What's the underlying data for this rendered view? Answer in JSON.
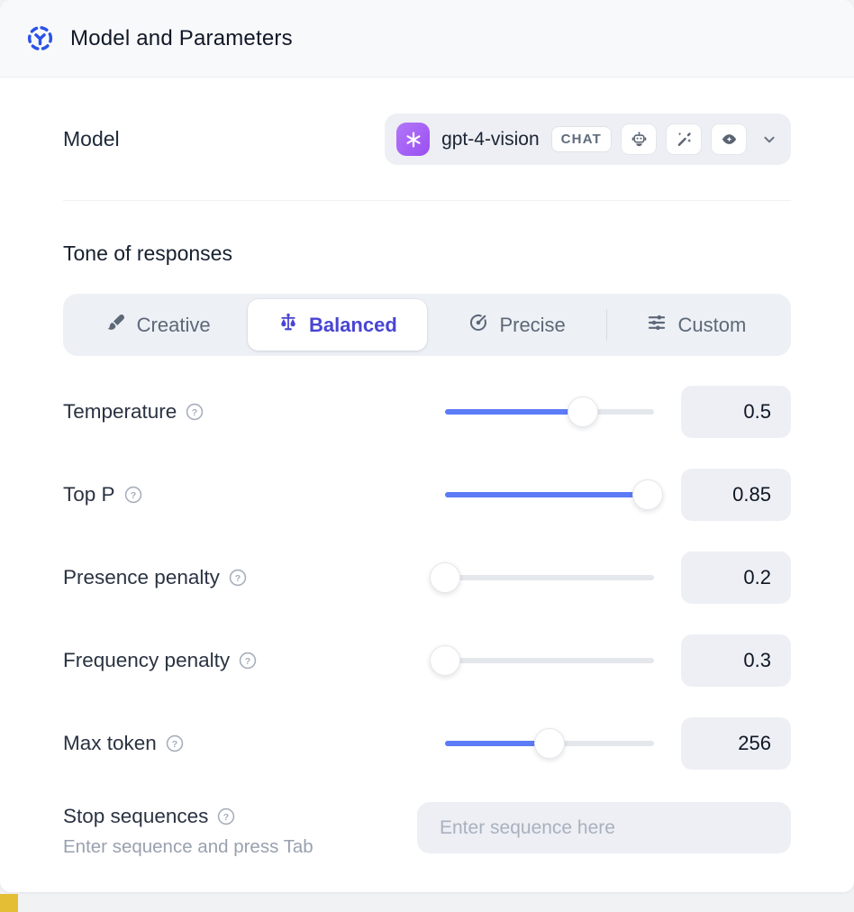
{
  "colors": {
    "accent_blue": "#2b52e8",
    "selected_indigo": "#4845d4",
    "slider_fill": "#5b7bf7",
    "control_bg": "#edeff4",
    "openai_purple": "#9a4ff2",
    "yellow_accent": "#e4bf35"
  },
  "header": {
    "title": "Model and Parameters",
    "icon": "model-node-icon"
  },
  "model": {
    "label": "Model",
    "selected": {
      "name": "gpt-4-vision",
      "provider_icon": "openai-icon",
      "type_badge": "CHAT",
      "capability_icons": [
        "robot-icon",
        "magic-wand-icon",
        "vision-eye-icon"
      ]
    }
  },
  "tone": {
    "heading": "Tone of responses",
    "options": [
      {
        "id": "creative",
        "label": "Creative",
        "icon": "brush-icon",
        "selected": false
      },
      {
        "id": "balanced",
        "label": "Balanced",
        "icon": "scale-icon",
        "selected": true
      },
      {
        "id": "precise",
        "label": "Precise",
        "icon": "target-icon",
        "selected": false
      },
      {
        "id": "custom",
        "label": "Custom",
        "icon": "sliders-icon",
        "selected": false
      }
    ]
  },
  "parameters": [
    {
      "id": "temperature",
      "label": "Temperature",
      "value": "0.5",
      "fill_pct": 66
    },
    {
      "id": "top-p",
      "label": "Top P",
      "value": "0.85",
      "fill_pct": 97
    },
    {
      "id": "presence-penalty",
      "label": "Presence penalty",
      "value": "0.2",
      "fill_pct": 0
    },
    {
      "id": "frequency-penalty",
      "label": "Frequency penalty",
      "value": "0.3",
      "fill_pct": 0
    },
    {
      "id": "max-token",
      "label": "Max token",
      "value": "256",
      "fill_pct": 50
    }
  ],
  "stop_sequences": {
    "label": "Stop sequences",
    "hint": "Enter sequence and press Tab",
    "placeholder": "Enter sequence here",
    "value": ""
  }
}
